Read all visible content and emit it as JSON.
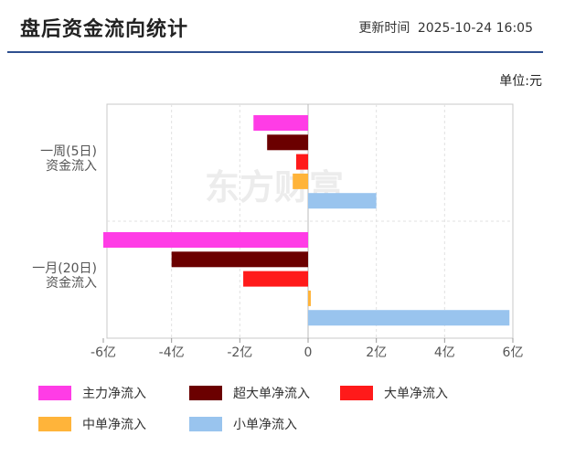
{
  "header": {
    "title": "盘后资金流向统计",
    "update_label": "更新时间",
    "update_time": "2025-10-24 16:05"
  },
  "unit_label": "单位:元",
  "watermark": "东方财富",
  "chart_data": {
    "type": "bar",
    "orientation": "horizontal",
    "categories": [
      [
        "一周(5日)",
        "资金流入"
      ],
      [
        "一月(20日)",
        "资金流入"
      ]
    ],
    "series": [
      {
        "name": "主力净流入",
        "color": "#ff3ce6",
        "values": [
          -1.6,
          -6.0
        ]
      },
      {
        "name": "超大单净流入",
        "color": "#6b0000",
        "values": [
          -1.2,
          -4.0
        ]
      },
      {
        "name": "大单净流入",
        "color": "#ff1a1a",
        "values": [
          -0.35,
          -1.9
        ]
      },
      {
        "name": "中单净流入",
        "color": "#ffb43a",
        "values": [
          -0.45,
          0.08
        ]
      },
      {
        "name": "小单净流入",
        "color": "#99c4ee",
        "values": [
          2.0,
          5.9
        ]
      }
    ],
    "x_ticks": [
      "-6亿",
      "-4亿",
      "-2亿",
      "0",
      "2亿",
      "4亿",
      "6亿"
    ],
    "x_tick_values": [
      -6,
      -4,
      -2,
      0,
      2,
      4,
      6
    ],
    "xlim": [
      -6.0,
      6.0
    ],
    "x_unit": "亿元",
    "grid": true,
    "legend_position": "bottom"
  }
}
